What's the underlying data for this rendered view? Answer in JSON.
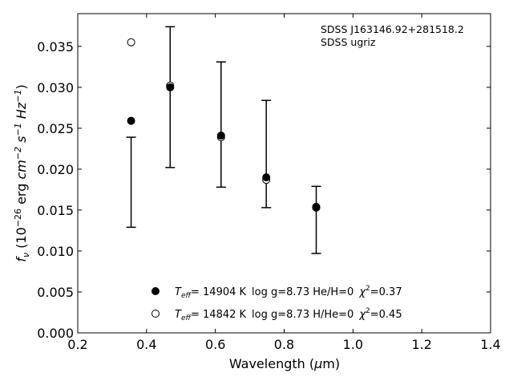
{
  "chart_data": {
    "type": "scatter",
    "annotation_lines": [
      "SDSS J163146.92+281518.2",
      "SDSS ugriz"
    ],
    "xlabel": {
      "main": "Wavelength (",
      "unit_symbol": "μ",
      "unit_rest": "m)"
    },
    "ylabel": {
      "prefix": "f",
      "sub": "ν",
      "exponent_1": "−26",
      "unit": "erg",
      "exponent_2": "−2",
      "exponent_3": "−1",
      "exponent_4": "−1"
    },
    "xlim": [
      0.2,
      1.4
    ],
    "ylim": [
      0.0,
      0.039
    ],
    "x_ticks": [
      0.2,
      0.4,
      0.6,
      0.8,
      1.0,
      1.2,
      1.4
    ],
    "x_tick_labels": [
      "0.2",
      "0.4",
      "0.6",
      "0.8",
      "1.0",
      "1.2",
      "1.4"
    ],
    "y_ticks": [
      0.0,
      0.005,
      0.01,
      0.015,
      0.02,
      0.025,
      0.03,
      0.035
    ],
    "y_tick_labels": [
      "0.000",
      "0.005",
      "0.010",
      "0.015",
      "0.020",
      "0.025",
      "0.030",
      "0.035"
    ],
    "grid": false,
    "observed": [
      {
        "x": 0.3551,
        "ymin": 0.0129,
        "ymax": 0.0239
      },
      {
        "x": 0.4686,
        "ymin": 0.0202,
        "ymax": 0.0374
      },
      {
        "x": 0.6166,
        "ymin": 0.0178,
        "ymax": 0.0331
      },
      {
        "x": 0.748,
        "ymin": 0.0153,
        "ymax": 0.0284
      },
      {
        "x": 0.8932,
        "ymin": 0.0097,
        "ymax": 0.0179
      }
    ],
    "series": [
      {
        "legend": {
          "teff_value": "= 14904 K",
          "params": "log g=8.73  He/H=0",
          "chi_value": "=0.37"
        },
        "marker": "filled-circle",
        "x": [
          0.3551,
          0.4686,
          0.6166,
          0.748,
          0.8932
        ],
        "y": [
          0.0259,
          0.03,
          0.0241,
          0.019,
          0.0154
        ]
      },
      {
        "legend": {
          "teff_value": "= 14842 K",
          "params": "log g=8.73  H/He=0",
          "chi_value": "=0.45"
        },
        "marker": "open-circle",
        "x": [
          0.3551,
          0.4686,
          0.6166,
          0.748,
          0.8932
        ],
        "y": [
          0.0355,
          0.0302,
          0.0239,
          0.0187,
          0.0153
        ]
      }
    ],
    "legend_placement": "lower-center"
  }
}
